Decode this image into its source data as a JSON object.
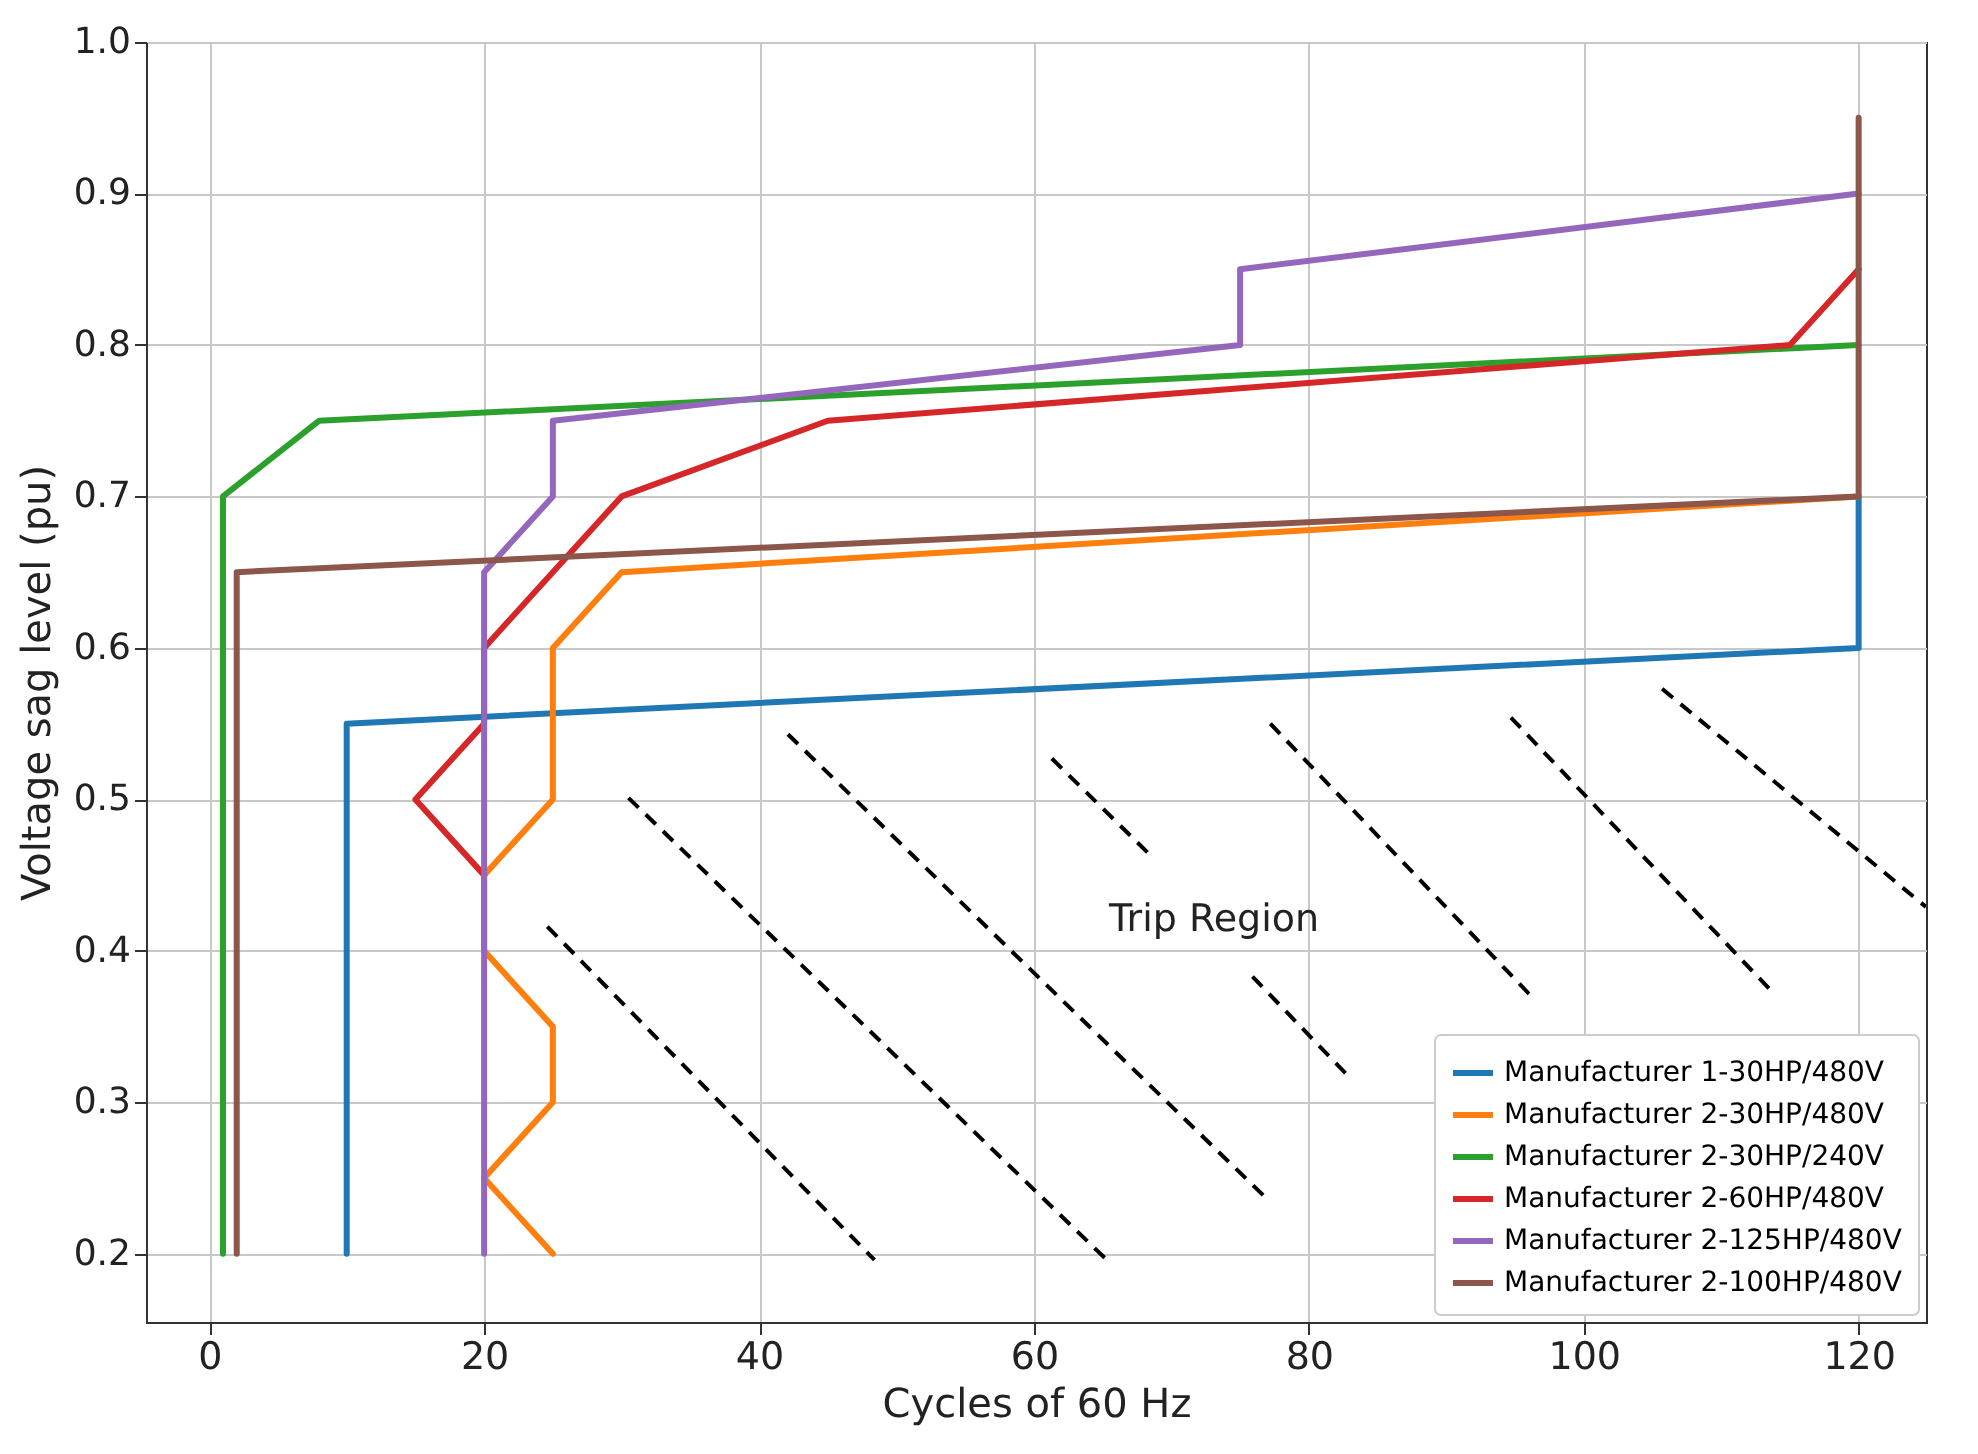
{
  "chart_data": {
    "type": "line",
    "xlabel": "Cycles of 60 Hz",
    "ylabel": "Voltage sag level (pu)",
    "xlim": [
      -4.6,
      124.9
    ],
    "ylim": [
      0.155,
      1.0
    ],
    "xticks": [
      0,
      20,
      40,
      60,
      80,
      100,
      120
    ],
    "yticks": [
      0.2,
      0.3,
      0.4,
      0.5,
      0.6,
      0.7,
      0.8,
      0.9,
      {
        "value": 1,
        "label": "1.0"
      }
    ],
    "grid": true,
    "legend": "bottom right",
    "line_style": "solid",
    "marker": "none",
    "annotations": [
      "Trip Region"
    ],
    "series": [
      {
        "name": "Manufacturer 1-30HP/480V",
        "color": "#1f77b4",
        "x": [
          10,
          10,
          120,
          120
        ],
        "values": [
          0.2,
          0.55,
          0.6,
          0.7
        ]
      },
      {
        "name": "Manufacturer 2-30HP/480V",
        "color": "#ff7f0e",
        "x": [
          25,
          20,
          25,
          25,
          20,
          20,
          25,
          25,
          30,
          120
        ],
        "values": [
          0.2,
          0.25,
          0.3,
          0.35,
          0.4,
          0.45,
          0.5,
          0.6,
          0.65,
          0.7
        ]
      },
      {
        "name": "Manufacturer 2-30HP/240V",
        "color": "#2ca02c",
        "x": [
          1,
          1,
          8,
          120
        ],
        "values": [
          0.2,
          0.7,
          0.75,
          0.8
        ]
      },
      {
        "name": "Manufacturer 2-60HP/480V",
        "color": "#d62728",
        "x": [
          20,
          15,
          20,
          20,
          30,
          45,
          115,
          120
        ],
        "values": [
          0.45,
          0.5,
          0.55,
          0.6,
          0.7,
          0.75,
          0.8,
          0.85
        ]
      },
      {
        "name": "Manufacturer 2-125HP/480V",
        "color": "#9467bd",
        "x": [
          20,
          20,
          25,
          25,
          75,
          75,
          120
        ],
        "values": [
          0.2,
          0.65,
          0.7,
          0.75,
          0.8,
          0.85,
          0.9
        ]
      },
      {
        "name": "Manufacturer 2-100HP/480V",
        "color": "#8c564b",
        "x": [
          2,
          2,
          120,
          120
        ],
        "values": [
          0.2,
          0.65,
          0.7,
          0.95
        ]
      },
      {
        "color": "#000000",
        "line_style": "dashed",
        "x": [
          24.6,
          48.4
        ],
        "values": [
          0.416,
          0.196
        ]
      },
      {
        "color": "#000000",
        "line_style": "dashed",
        "x": [
          30.5,
          65.3
        ],
        "values": [
          0.501,
          0.196
        ]
      },
      {
        "color": "#000000",
        "line_style": "dashed",
        "x": [
          42.1,
          77.1
        ],
        "values": [
          0.543,
          0.235
        ]
      },
      {
        "color": "#000000",
        "line_style": "dashed",
        "x": [
          61.3,
          68.6
        ],
        "values": [
          0.527,
          0.462
        ]
      },
      {
        "color": "#000000",
        "line_style": "dashed",
        "x": [
          75.9,
          82.8
        ],
        "values": [
          0.383,
          0.318
        ]
      },
      {
        "color": "#000000",
        "line_style": "dashed",
        "x": [
          77.2,
          96.4
        ],
        "values": [
          0.55,
          0.368
        ]
      },
      {
        "color": "#000000",
        "line_style": "dashed",
        "x": [
          94.7,
          113.6
        ],
        "values": [
          0.554,
          0.374
        ]
      },
      {
        "color": "#000000",
        "line_style": "dashed",
        "x": [
          105.7,
          124.9
        ],
        "values": [
          0.573,
          0.429
        ]
      }
    ]
  }
}
